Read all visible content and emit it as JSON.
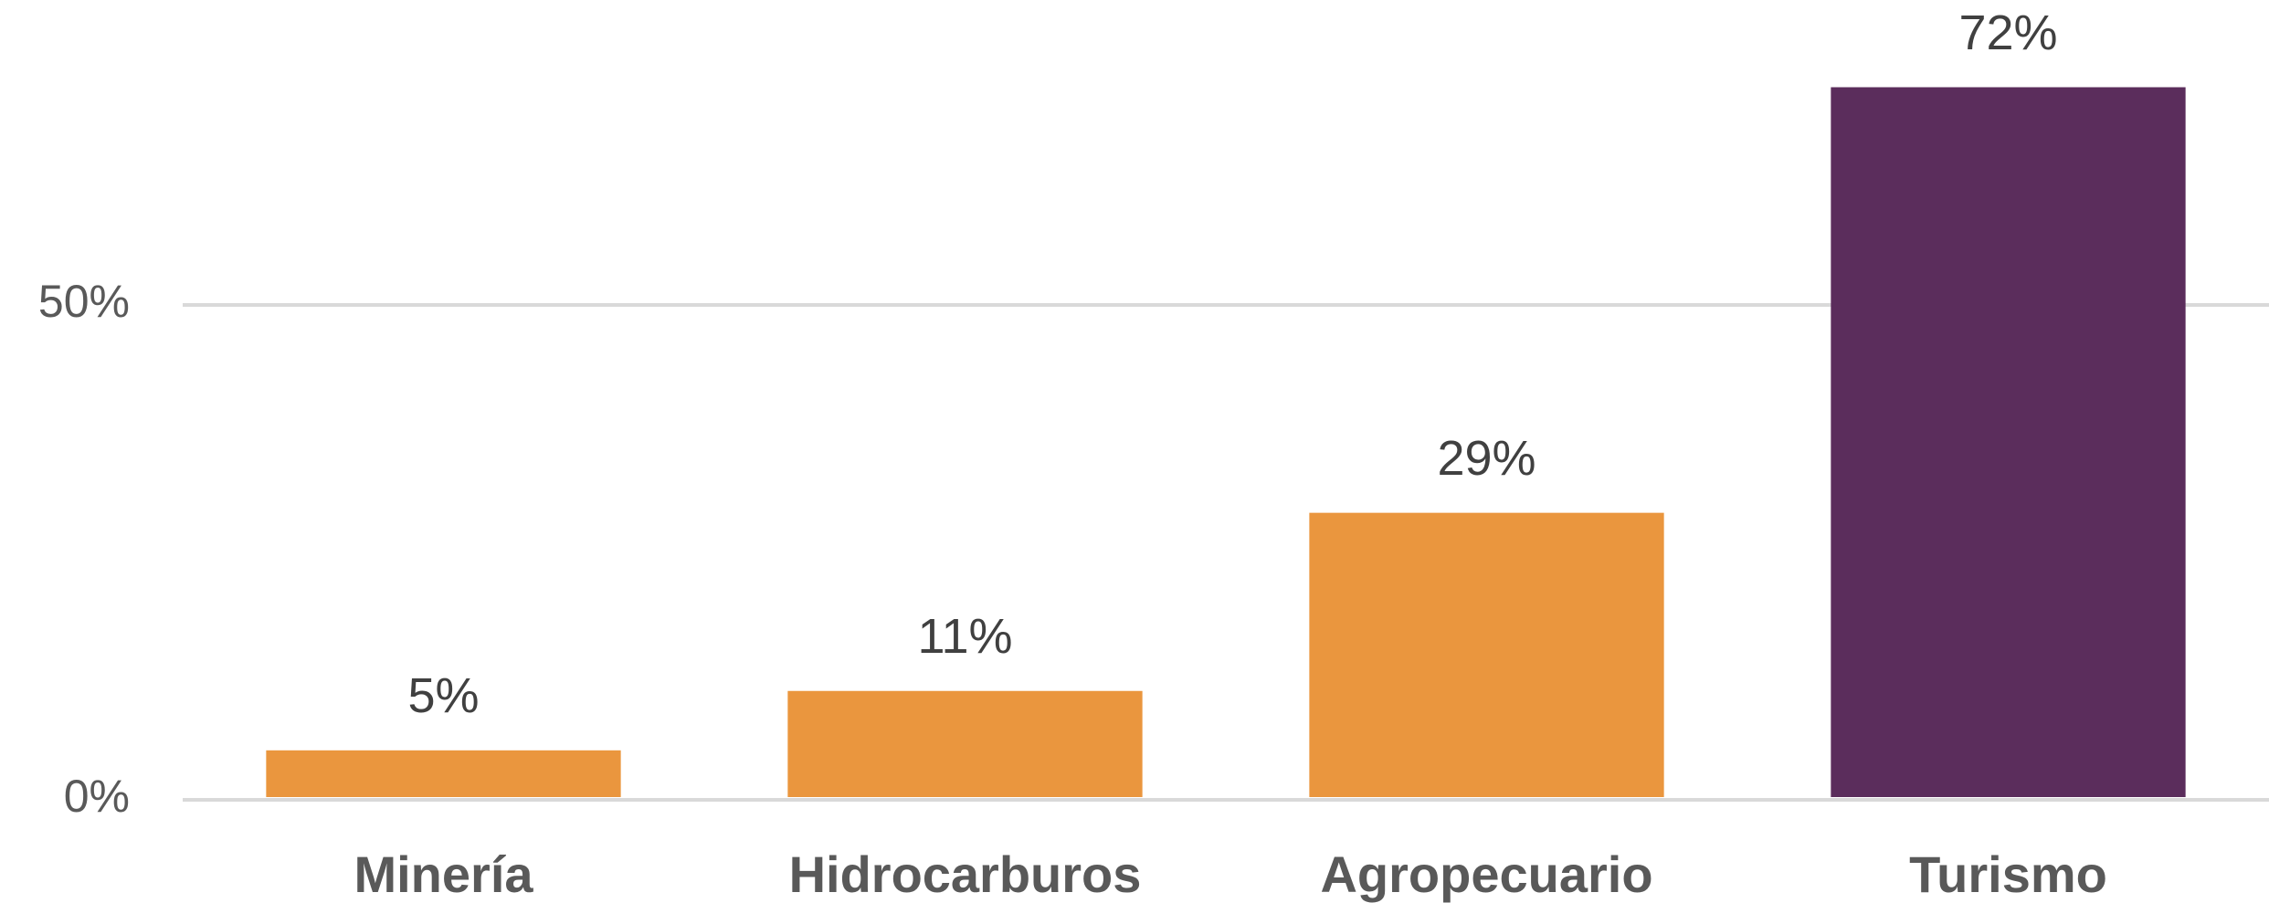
{
  "chart_data": {
    "type": "bar",
    "categories": [
      "Minería",
      "Hidrocarburos",
      "Agropecuario",
      "Turismo"
    ],
    "values": [
      5,
      11,
      29,
      72
    ],
    "value_labels": [
      "5%",
      "11%",
      "29%",
      "72%"
    ],
    "colors": [
      "#ea963e",
      "#ea963e",
      "#ea963e",
      "#5b2d5c"
    ],
    "ylim": [
      0,
      80
    ],
    "yticks": [
      {
        "value": 0,
        "label": "0%"
      },
      {
        "value": 50,
        "label": "50%"
      }
    ],
    "grid": true
  }
}
